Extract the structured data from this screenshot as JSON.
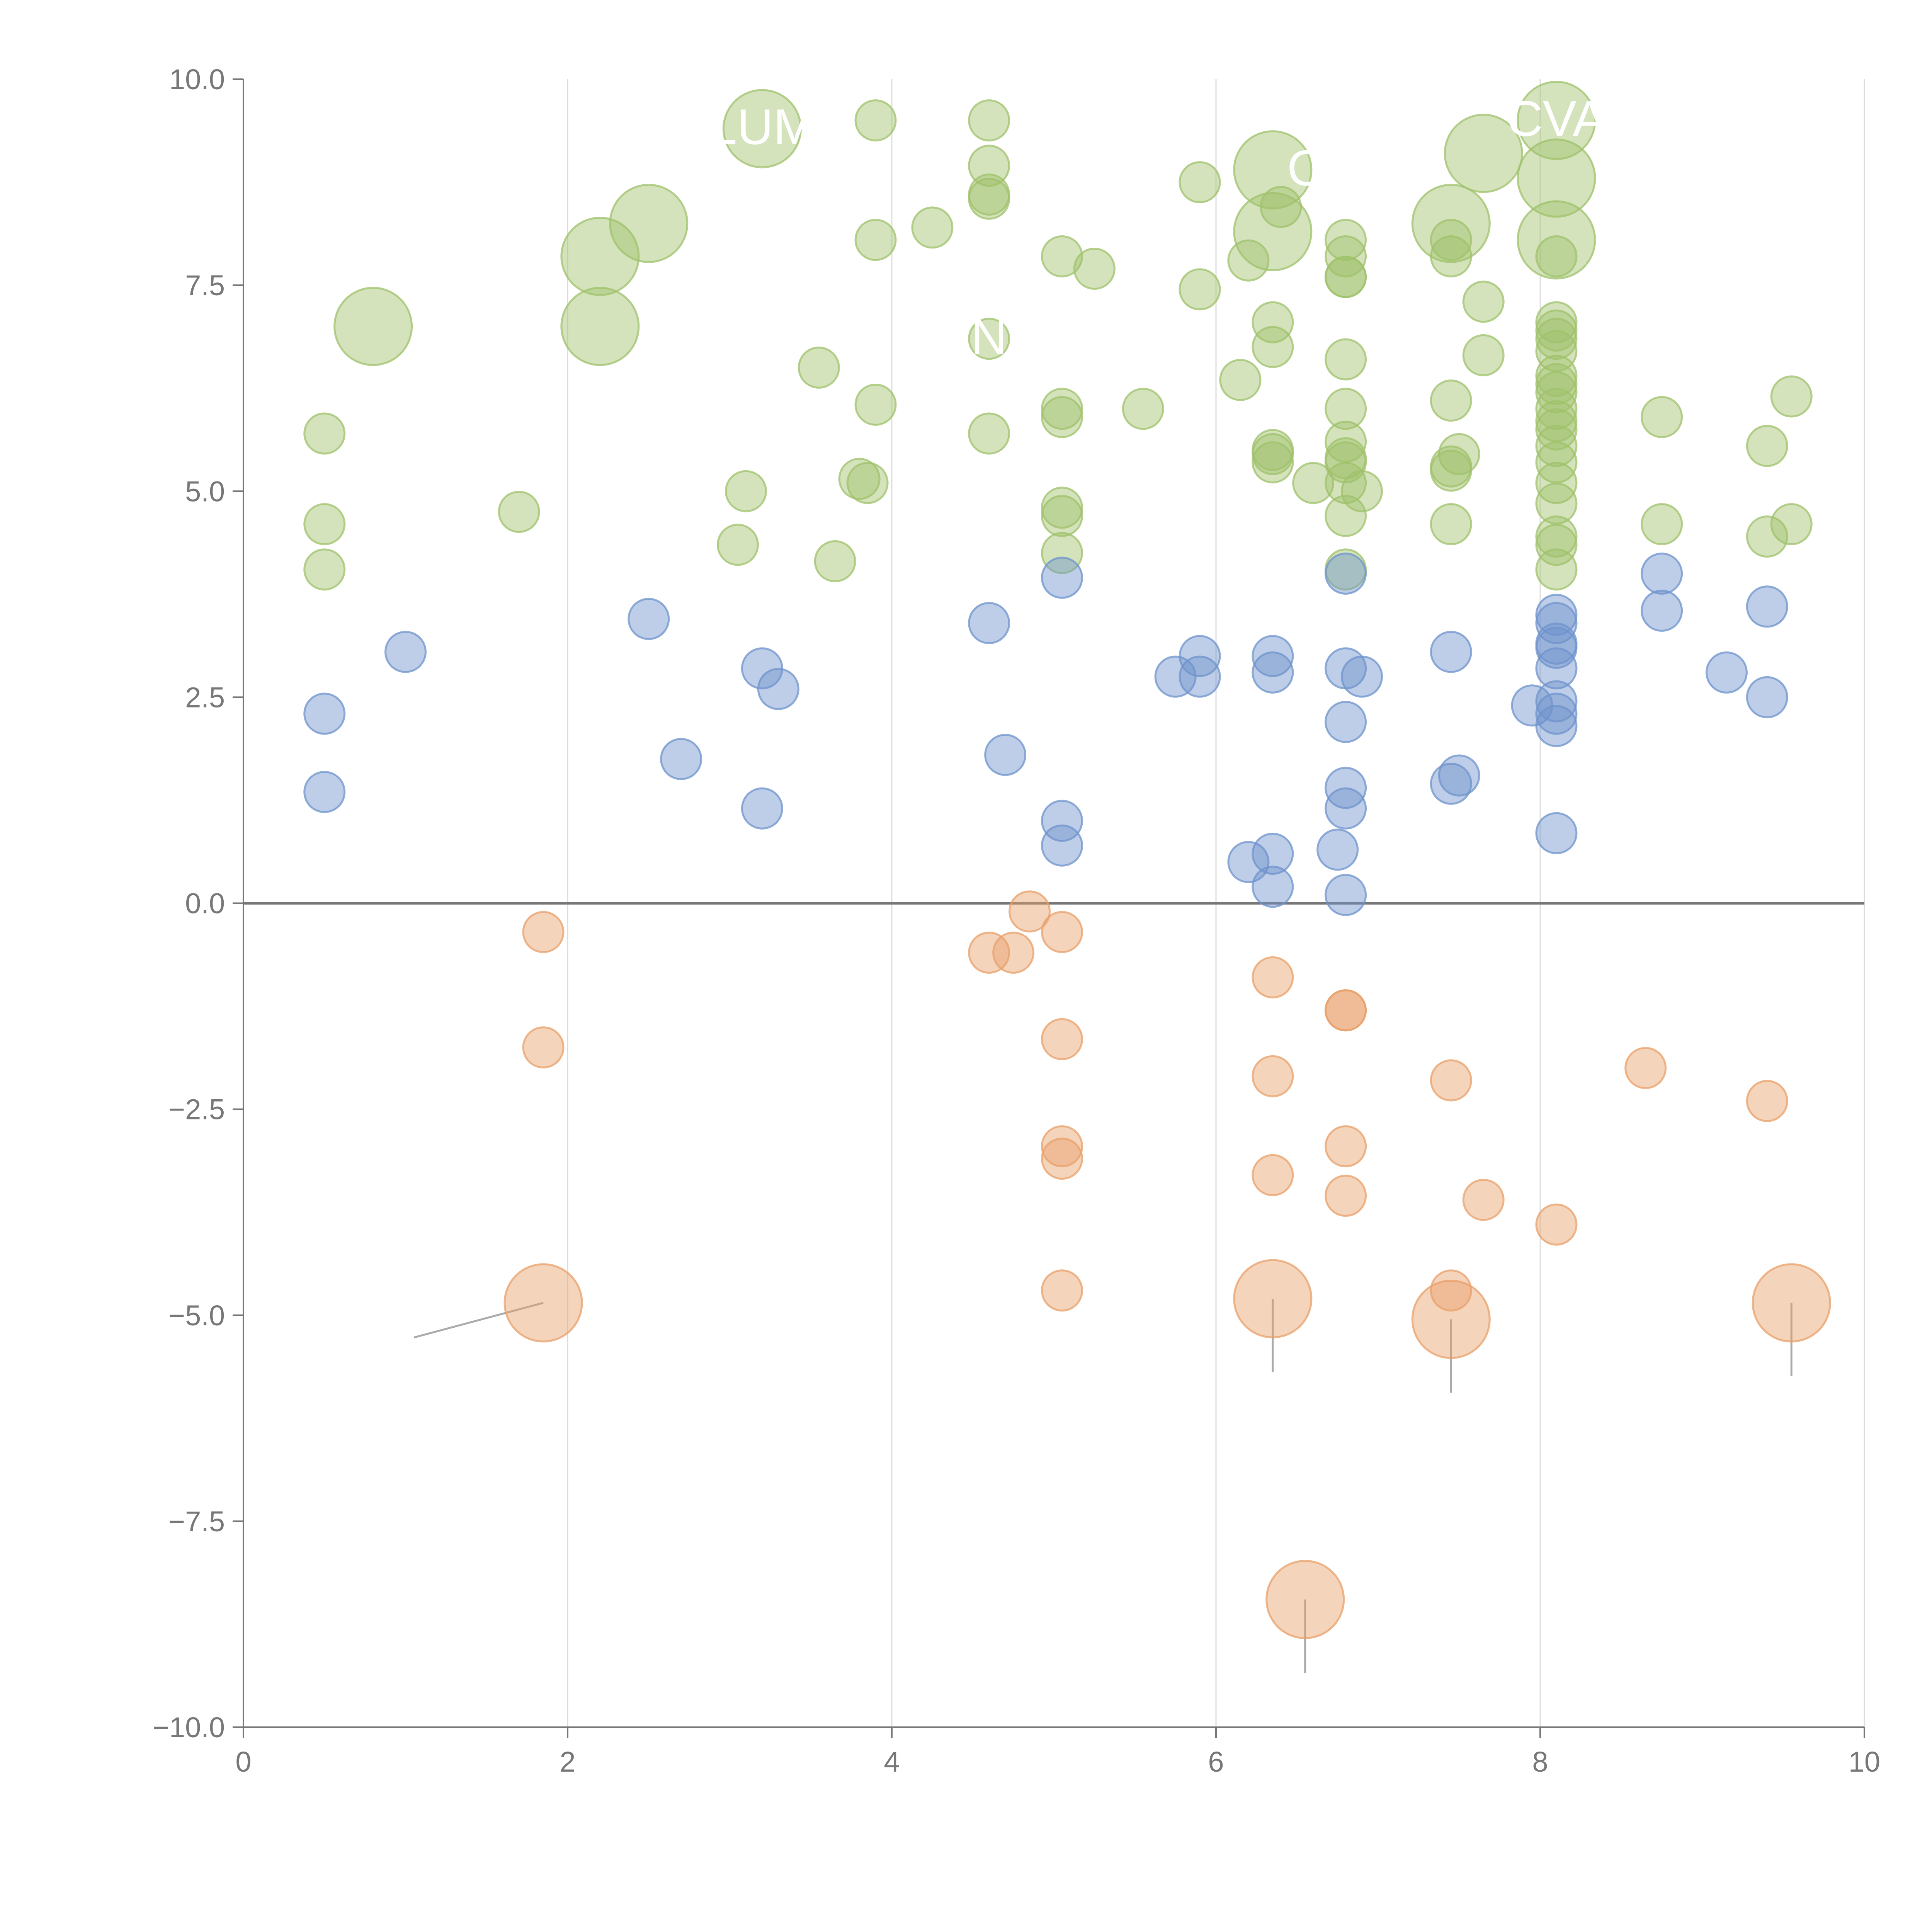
{
  "chart_data": {
    "type": "scatter",
    "title": "",
    "xlabel": "",
    "ylabel": "",
    "xlim": [
      0,
      10
    ],
    "ylim": [
      -10,
      10
    ],
    "x_ticks": [
      "0",
      "2",
      "4",
      "6",
      "8",
      "10"
    ],
    "x_tick_values": [
      0,
      2,
      4,
      6,
      8,
      10
    ],
    "y_ticks": [
      "10.0",
      "7.5",
      "5.0",
      "2.5",
      "0.0",
      "−2.5",
      "−5.0",
      "−7.5",
      "−10.0"
    ],
    "y_tick_values": [
      10,
      7.5,
      5,
      2.5,
      0,
      -2.5,
      -5,
      -7.5,
      -10
    ],
    "vertical_grid": true,
    "zero_line": true,
    "colors": {
      "green": "#9fc16b",
      "blue": "#6e93cc",
      "orange": "#e8a06a",
      "axis": "#777777",
      "grid": "#dcdcdc"
    },
    "series": [
      {
        "name": "green",
        "color": "#9fc16b",
        "points": [
          [
            0.5,
            5.7
          ],
          [
            0.5,
            4.6
          ],
          [
            0.5,
            4.05
          ],
          [
            1.7,
            4.75
          ],
          [
            3.05,
            4.35
          ],
          [
            3.1,
            5.0
          ],
          [
            3.55,
            6.5
          ],
          [
            3.65,
            4.15
          ],
          [
            3.8,
            5.15
          ],
          [
            3.85,
            5.1
          ],
          [
            3.9,
            9.5
          ],
          [
            3.9,
            8.05
          ],
          [
            3.9,
            6.05
          ],
          [
            4.25,
            8.2
          ],
          [
            4.6,
            9.5
          ],
          [
            4.6,
            8.95
          ],
          [
            4.6,
            8.6
          ],
          [
            4.6,
            8.55
          ],
          [
            4.6,
            6.85
          ],
          [
            4.6,
            5.7
          ],
          [
            5.05,
            7.85
          ],
          [
            5.05,
            6.0
          ],
          [
            5.05,
            5.9
          ],
          [
            5.05,
            4.8
          ],
          [
            5.05,
            4.7
          ],
          [
            5.05,
            4.25
          ],
          [
            5.25,
            7.7
          ],
          [
            5.55,
            6.0
          ],
          [
            5.9,
            8.75
          ],
          [
            5.9,
            7.45
          ],
          [
            6.15,
            6.35
          ],
          [
            6.2,
            7.8
          ],
          [
            6.35,
            7.05
          ],
          [
            6.35,
            6.75
          ],
          [
            6.35,
            5.5
          ],
          [
            6.35,
            5.45
          ],
          [
            6.35,
            5.35
          ],
          [
            6.4,
            8.45
          ],
          [
            6.6,
            5.1
          ],
          [
            6.8,
            8.05
          ],
          [
            6.8,
            7.85
          ],
          [
            6.8,
            7.6
          ],
          [
            6.8,
            7.6
          ],
          [
            6.8,
            6.6
          ],
          [
            6.8,
            6.0
          ],
          [
            6.8,
            5.6
          ],
          [
            6.8,
            5.4
          ],
          [
            6.8,
            5.35
          ],
          [
            6.8,
            5.1
          ],
          [
            6.8,
            4.7
          ],
          [
            6.8,
            4.05
          ],
          [
            6.9,
            5.0
          ],
          [
            7.45,
            8.05
          ],
          [
            7.45,
            7.85
          ],
          [
            7.45,
            6.1
          ],
          [
            7.45,
            5.3
          ],
          [
            7.45,
            5.25
          ],
          [
            7.45,
            4.6
          ],
          [
            7.5,
            5.45
          ],
          [
            7.65,
            7.3
          ],
          [
            7.65,
            6.65
          ],
          [
            8.1,
            7.85
          ],
          [
            8.1,
            7.05
          ],
          [
            8.1,
            6.95
          ],
          [
            8.1,
            6.85
          ],
          [
            8.1,
            6.7
          ],
          [
            8.1,
            6.4
          ],
          [
            8.1,
            6.3
          ],
          [
            8.1,
            6.2
          ],
          [
            8.1,
            6.0
          ],
          [
            8.1,
            5.85
          ],
          [
            8.1,
            5.75
          ],
          [
            8.1,
            5.55
          ],
          [
            8.1,
            5.35
          ],
          [
            8.1,
            5.1
          ],
          [
            8.1,
            4.85
          ],
          [
            8.1,
            4.45
          ],
          [
            8.1,
            4.35
          ],
          [
            8.1,
            4.05
          ],
          [
            8.75,
            5.9
          ],
          [
            8.75,
            4.6
          ],
          [
            9.4,
            5.55
          ],
          [
            9.4,
            4.45
          ],
          [
            9.55,
            6.15
          ],
          [
            9.55,
            4.6
          ]
        ],
        "large_points": [
          [
            0.8,
            7.0
          ],
          [
            2.2,
            7.85
          ],
          [
            2.2,
            7.0
          ],
          [
            2.5,
            8.25
          ],
          [
            3.2,
            9.4
          ],
          [
            6.35,
            8.9
          ],
          [
            6.35,
            8.15
          ],
          [
            7.45,
            8.25
          ],
          [
            7.65,
            9.1
          ],
          [
            8.1,
            9.5
          ],
          [
            8.1,
            8.8
          ],
          [
            8.1,
            8.05
          ]
        ]
      },
      {
        "name": "blue",
        "color": "#6e93cc",
        "points": [
          [
            0.5,
            2.3
          ],
          [
            0.5,
            1.35
          ],
          [
            1.0,
            3.05
          ],
          [
            2.5,
            3.45
          ],
          [
            2.7,
            1.75
          ],
          [
            3.2,
            2.85
          ],
          [
            3.2,
            1.15
          ],
          [
            3.3,
            2.6
          ],
          [
            4.6,
            3.4
          ],
          [
            4.7,
            1.8
          ],
          [
            5.05,
            3.95
          ],
          [
            5.05,
            1.0
          ],
          [
            5.05,
            0.7
          ],
          [
            5.75,
            2.75
          ],
          [
            5.9,
            3.0
          ],
          [
            5.9,
            2.75
          ],
          [
            6.2,
            0.5
          ],
          [
            6.35,
            3.0
          ],
          [
            6.35,
            2.8
          ],
          [
            6.35,
            0.6
          ],
          [
            6.35,
            0.2
          ],
          [
            6.75,
            0.65
          ],
          [
            6.8,
            4.0
          ],
          [
            6.8,
            2.85
          ],
          [
            6.8,
            2.2
          ],
          [
            6.8,
            1.4
          ],
          [
            6.8,
            1.15
          ],
          [
            6.8,
            0.1
          ],
          [
            6.9,
            2.75
          ],
          [
            7.45,
            3.05
          ],
          [
            7.45,
            1.45
          ],
          [
            7.5,
            1.55
          ],
          [
            7.95,
            2.4
          ],
          [
            8.1,
            3.5
          ],
          [
            8.1,
            3.4
          ],
          [
            8.1,
            3.15
          ],
          [
            8.1,
            3.1
          ],
          [
            8.1,
            2.85
          ],
          [
            8.1,
            2.45
          ],
          [
            8.1,
            2.3
          ],
          [
            8.1,
            2.15
          ],
          [
            8.1,
            0.85
          ],
          [
            8.75,
            4.0
          ],
          [
            8.75,
            3.55
          ],
          [
            9.15,
            2.8
          ],
          [
            9.4,
            3.6
          ],
          [
            9.4,
            2.5
          ]
        ],
        "large_points": []
      },
      {
        "name": "orange",
        "color": "#e8a06a",
        "points": [
          [
            1.85,
            -0.35
          ],
          [
            1.85,
            -1.75
          ],
          [
            4.6,
            -0.6
          ],
          [
            4.75,
            -0.6
          ],
          [
            4.85,
            -0.1
          ],
          [
            5.05,
            -0.35
          ],
          [
            5.05,
            -1.65
          ],
          [
            5.05,
            -2.95
          ],
          [
            5.05,
            -3.1
          ],
          [
            5.05,
            -4.7
          ],
          [
            6.35,
            -0.9
          ],
          [
            6.35,
            -2.1
          ],
          [
            6.35,
            -3.3
          ],
          [
            6.8,
            -1.3
          ],
          [
            6.8,
            -1.3
          ],
          [
            6.8,
            -2.95
          ],
          [
            6.8,
            -3.55
          ],
          [
            7.45,
            -2.15
          ],
          [
            7.45,
            -4.7
          ],
          [
            7.65,
            -3.6
          ],
          [
            8.1,
            -3.9
          ],
          [
            8.65,
            -2.0
          ],
          [
            9.4,
            -2.4
          ]
        ],
        "large_points": [
          [
            1.85,
            -4.85
          ],
          [
            6.35,
            -4.8
          ],
          [
            6.55,
            -8.45
          ],
          [
            7.45,
            -5.05
          ],
          [
            9.55,
            -4.85
          ]
        ]
      }
    ],
    "annotations": [
      {
        "label": "LUM",
        "x": 3.2,
        "y": 9.4,
        "color": "#ffffff"
      },
      {
        "label": "CVA",
        "x": 8.1,
        "y": 9.5,
        "color": "#ffffff"
      },
      {
        "label": "C",
        "x": 6.55,
        "y": 8.9,
        "color": "#ffffff"
      },
      {
        "label": "N",
        "x": 4.6,
        "y": 6.85,
        "color": "#ffffff"
      }
    ]
  }
}
